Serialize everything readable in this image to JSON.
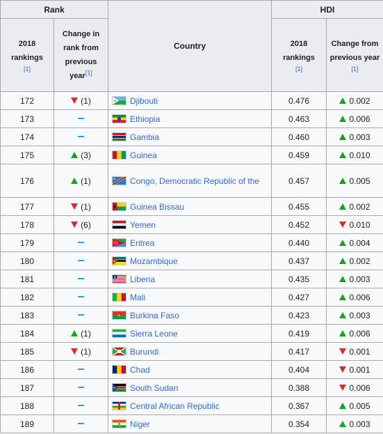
{
  "headers": {
    "rank": "Rank",
    "hdi": "HDI",
    "country": "Country",
    "rank_2018": "2018 rankings",
    "rank_2018_ref": "[1]",
    "rank_change": "Change in rank from previous year",
    "rank_change_ref": "[1]",
    "hdi_2018": "2018 rankings",
    "hdi_2018_ref": "[1]",
    "hdi_change": "Change from previous year",
    "hdi_change_ref": "[1]"
  },
  "colors": {
    "up": "#14a519",
    "down": "#d52c2c",
    "same": "#2b9ed6",
    "link": "#3366cc"
  },
  "rows": [
    {
      "rank": "172",
      "rank_dir": "down",
      "rank_change": "(1)",
      "country": "Djibouti",
      "flag": "djibouti-flag-icon",
      "hdi": "0.476",
      "hdi_dir": "up",
      "hdi_change": "0.002"
    },
    {
      "rank": "173",
      "rank_dir": "same",
      "rank_change": "",
      "country": "Ethiopia",
      "flag": "ethiopia-flag-icon",
      "hdi": "0.463",
      "hdi_dir": "up",
      "hdi_change": "0.006"
    },
    {
      "rank": "174",
      "rank_dir": "same",
      "rank_change": "",
      "country": "Gambia",
      "flag": "gambia-flag-icon",
      "hdi": "0.460",
      "hdi_dir": "up",
      "hdi_change": "0.003"
    },
    {
      "rank": "175",
      "rank_dir": "up",
      "rank_change": "(3)",
      "country": "Guinea",
      "flag": "guinea-flag-icon",
      "hdi": "0.459",
      "hdi_dir": "up",
      "hdi_change": "0.010"
    },
    {
      "rank": "176",
      "rank_dir": "up",
      "rank_change": "(1)",
      "country": "Congo, Democratic Republic of the",
      "flag": "dr-congo-flag-icon",
      "hdi": "0.457",
      "hdi_dir": "up",
      "hdi_change": "0.005"
    },
    {
      "rank": "177",
      "rank_dir": "down",
      "rank_change": "(1)",
      "country": "Guinea Bissau",
      "flag": "guinea-bissau-flag-icon",
      "hdi": "0.455",
      "hdi_dir": "up",
      "hdi_change": "0.002"
    },
    {
      "rank": "178",
      "rank_dir": "down",
      "rank_change": "(6)",
      "country": "Yemen",
      "flag": "yemen-flag-icon",
      "hdi": "0.452",
      "hdi_dir": "down",
      "hdi_change": "0.010"
    },
    {
      "rank": "179",
      "rank_dir": "same",
      "rank_change": "",
      "country": "Eritrea",
      "flag": "eritrea-flag-icon",
      "hdi": "0.440",
      "hdi_dir": "up",
      "hdi_change": "0.004"
    },
    {
      "rank": "180",
      "rank_dir": "same",
      "rank_change": "",
      "country": "Mozambique",
      "flag": "mozambique-flag-icon",
      "hdi": "0.437",
      "hdi_dir": "up",
      "hdi_change": "0.002"
    },
    {
      "rank": "181",
      "rank_dir": "same",
      "rank_change": "",
      "country": "Liberia",
      "flag": "liberia-flag-icon",
      "hdi": "0.435",
      "hdi_dir": "up",
      "hdi_change": "0.003"
    },
    {
      "rank": "182",
      "rank_dir": "same",
      "rank_change": "",
      "country": "Mali",
      "flag": "mali-flag-icon",
      "hdi": "0.427",
      "hdi_dir": "up",
      "hdi_change": "0.006"
    },
    {
      "rank": "183",
      "rank_dir": "same",
      "rank_change": "",
      "country": "Burkina Faso",
      "flag": "burkina-faso-flag-icon",
      "hdi": "0.423",
      "hdi_dir": "up",
      "hdi_change": "0.003"
    },
    {
      "rank": "184",
      "rank_dir": "up",
      "rank_change": "(1)",
      "country": "Sierra Leone",
      "flag": "sierra-leone-flag-icon",
      "hdi": "0.419",
      "hdi_dir": "up",
      "hdi_change": "0.006"
    },
    {
      "rank": "185",
      "rank_dir": "down",
      "rank_change": "(1)",
      "country": "Burundi",
      "flag": "burundi-flag-icon",
      "hdi": "0.417",
      "hdi_dir": "down",
      "hdi_change": "0.001"
    },
    {
      "rank": "186",
      "rank_dir": "same",
      "rank_change": "",
      "country": "Chad",
      "flag": "chad-flag-icon",
      "hdi": "0.404",
      "hdi_dir": "down",
      "hdi_change": "0.001"
    },
    {
      "rank": "187",
      "rank_dir": "same",
      "rank_change": "",
      "country": "South Sudan",
      "flag": "south-sudan-flag-icon",
      "hdi": "0.388",
      "hdi_dir": "down",
      "hdi_change": "0.006"
    },
    {
      "rank": "188",
      "rank_dir": "same",
      "rank_change": "",
      "country": "Central African Republic",
      "flag": "central-african-republic-flag-icon",
      "hdi": "0.367",
      "hdi_dir": "up",
      "hdi_change": "0.005"
    },
    {
      "rank": "189",
      "rank_dir": "same",
      "rank_change": "",
      "country": "Niger",
      "flag": "niger-flag-icon",
      "hdi": "0.354",
      "hdi_dir": "up",
      "hdi_change": "0.003"
    }
  ]
}
